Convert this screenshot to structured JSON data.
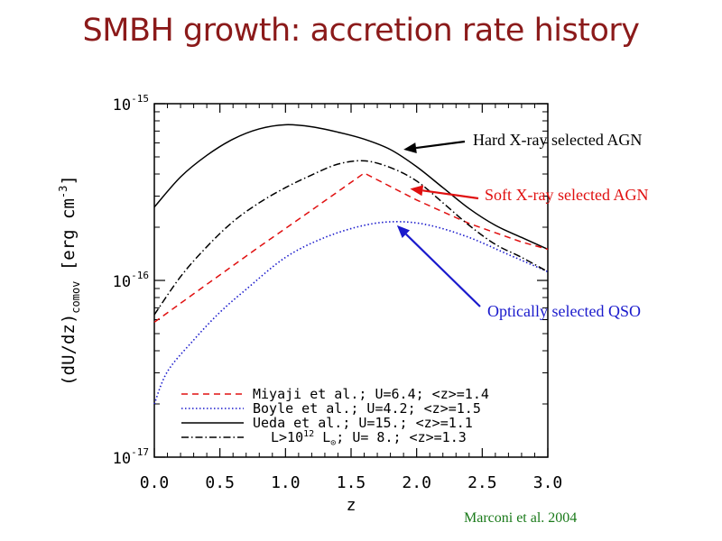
{
  "slide": {
    "title": "SMBH growth: accretion rate history",
    "credit": "Marconi et al. 2004",
    "credit_color": "#1a7a1a"
  },
  "chart_data": {
    "type": "line",
    "title": "",
    "xlabel": "z",
    "ylabel_main": "(dU/dz)",
    "ylabel_sub": "comov",
    "ylabel_units": " [erg cm",
    "ylabel_units_sup": "-3",
    "ylabel_units_end": "]",
    "xlim": [
      0.0,
      3.0
    ],
    "ylim": [
      1e-17,
      1e-15
    ],
    "yscale": "log",
    "x_ticks": [
      "0.0",
      "0.5",
      "1.0",
      "1.5",
      "2.0",
      "2.5",
      "3.0"
    ],
    "y_ticks": [
      {
        "base": "10",
        "exp": "-15",
        "value": 1e-15
      },
      {
        "base": "10",
        "exp": "-16",
        "value": 1e-16
      },
      {
        "base": "10",
        "exp": "-17",
        "value": 1e-17
      }
    ],
    "series": [
      {
        "name": "Ueda et al.;  U=15.; <z>=1.1",
        "style": "solid",
        "color": "#000000",
        "x": [
          0.0,
          0.2,
          0.4,
          0.6,
          0.8,
          1.0,
          1.2,
          1.4,
          1.6,
          1.8,
          2.0,
          2.2,
          2.4,
          2.6,
          2.8,
          3.0
        ],
        "y": [
          2.6e-16,
          3.85e-16,
          5.1e-16,
          6.3e-16,
          7.2e-16,
          7.6e-16,
          7.4e-16,
          6.9e-16,
          6.3e-16,
          5.5e-16,
          4.4e-16,
          3.35e-16,
          2.55e-16,
          2.05e-16,
          1.75e-16,
          1.5e-16
        ]
      },
      {
        "name": "Miyaji et al.; U=6.4; <z>=1.4",
        "style": "dashed",
        "color": "#e01010",
        "x": [
          0.0,
          0.4,
          0.8,
          1.2,
          1.6,
          2.0,
          2.4,
          2.8,
          3.0
        ],
        "y": [
          5.8e-17,
          9.5e-17,
          1.55e-16,
          2.5e-16,
          4.05e-16,
          2.85e-16,
          2.1e-16,
          1.65e-16,
          1.5e-16
        ]
      },
      {
        "name": "Boyle et al.;  U=4.2; <z>=1.5",
        "style": "dotted",
        "color": "#1a1acc",
        "x": [
          0.0,
          0.1,
          0.3,
          0.5,
          0.7,
          1.0,
          1.3,
          1.6,
          1.85,
          2.1,
          2.4,
          2.7,
          3.0
        ],
        "y": [
          2e-17,
          3.05e-17,
          4.6e-17,
          6.6e-17,
          8.9e-17,
          1.35e-16,
          1.75e-16,
          2.05e-16,
          2.15e-16,
          2.05e-16,
          1.75e-16,
          1.4e-16,
          1.12e-16
        ]
      },
      {
        "name": "L>10<sup>12</sup> L<sub>⊙</sub>; U= 8.; <z>=1.3",
        "legend_parts": [
          "L>10",
          "12",
          " L",
          "⊙",
          "; U= 8.; <z>=1.3"
        ],
        "style": "dashdot",
        "color": "#000000",
        "x": [
          0.0,
          0.2,
          0.4,
          0.6,
          0.8,
          1.0,
          1.2,
          1.4,
          1.6,
          1.8,
          2.0,
          2.2,
          2.4,
          2.6,
          2.8,
          3.0
        ],
        "y": [
          6.4e-17,
          1.05e-16,
          1.55e-16,
          2.15e-16,
          2.75e-16,
          3.35e-16,
          3.95e-16,
          4.55e-16,
          4.75e-16,
          4.35e-16,
          3.65e-16,
          2.75e-16,
          2.05e-16,
          1.6e-16,
          1.35e-16,
          1.12e-16
        ]
      }
    ],
    "annotations": [
      {
        "text": "Hard X-ray selected AGN",
        "color": "#000000",
        "points_to": {
          "x": 1.9,
          "y": 5.5e-16
        }
      },
      {
        "text": "Soft X-ray selected AGN",
        "color": "#e01010",
        "points_to": {
          "x": 1.95,
          "y": 3.3e-16
        }
      },
      {
        "text": "Optically selected QSO",
        "color": "#1a1acc",
        "points_to": {
          "x": 1.85,
          "y": 2.05e-16
        }
      }
    ]
  }
}
